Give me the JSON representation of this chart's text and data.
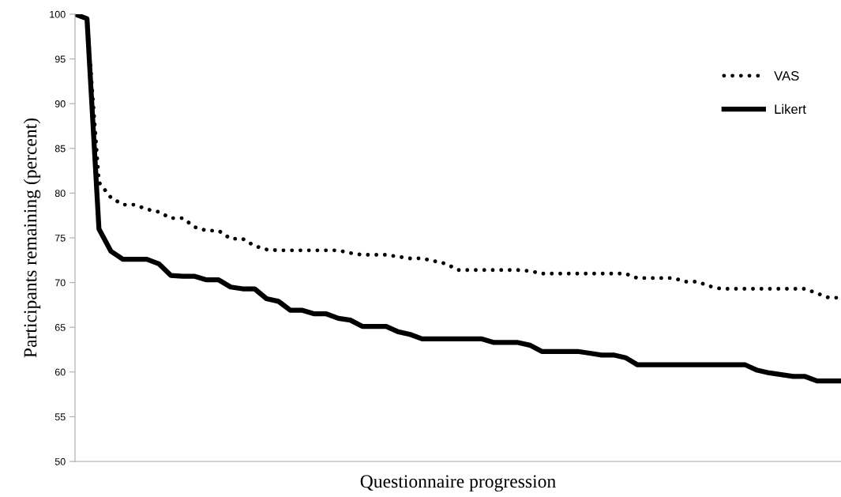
{
  "chart_data": {
    "type": "line",
    "xlabel": "Questionnaire progression",
    "ylabel": "Participants remaining (percent)",
    "categories": [
      null,
      null,
      null,
      null,
      null,
      null,
      null,
      null,
      null,
      null,
      null,
      null,
      null,
      null,
      null,
      null,
      null,
      null,
      null,
      null,
      null,
      null,
      null,
      null,
      null,
      null,
      null,
      null,
      null,
      null,
      null,
      null,
      null,
      null,
      null,
      null,
      null,
      null,
      null,
      null,
      null,
      null,
      null,
      null,
      null,
      null,
      null,
      null,
      null,
      null,
      null,
      null,
      null,
      null,
      null,
      null,
      null,
      null,
      null,
      null,
      null,
      null,
      null,
      null,
      null
    ],
    "series": [
      {
        "name": "VAS",
        "color": "#000000",
        "line_style": "dotted",
        "values": [
          100,
          99.5,
          81.2,
          79.5,
          78.7,
          78.7,
          78.2,
          77.9,
          77.2,
          77.2,
          76.2,
          75.8,
          75.8,
          74.9,
          74.9,
          74.1,
          73.7,
          73.6,
          73.6,
          73.6,
          73.6,
          73.6,
          73.6,
          73.3,
          73.1,
          73.1,
          73.1,
          72.9,
          72.7,
          72.7,
          72.4,
          72.1,
          71.4,
          71.4,
          71.4,
          71.4,
          71.4,
          71.4,
          71.3,
          71.0,
          71.0,
          71.0,
          71.0,
          71.0,
          71.0,
          71.0,
          71.0,
          70.5,
          70.5,
          70.5,
          70.5,
          70.1,
          70.1,
          69.6,
          69.3,
          69.3,
          69.3,
          69.3,
          69.3,
          69.3,
          69.3,
          69.3,
          68.8,
          68.3,
          68.3
        ]
      },
      {
        "name": "Likert",
        "color": "#000000",
        "line_style": "solid",
        "values": [
          100,
          99.5,
          76,
          73.5,
          72.6,
          72.6,
          72.6,
          72.1,
          70.8,
          70.7,
          70.7,
          70.3,
          70.3,
          69.5,
          69.3,
          69.3,
          68.2,
          67.9,
          66.9,
          66.9,
          66.5,
          66.5,
          66.0,
          65.8,
          65.1,
          65.1,
          65.1,
          64.5,
          64.2,
          63.7,
          63.7,
          63.7,
          63.7,
          63.7,
          63.7,
          63.3,
          63.3,
          63.3,
          63.0,
          62.3,
          62.3,
          62.3,
          62.3,
          62.1,
          61.9,
          61.9,
          61.6,
          60.8,
          60.8,
          60.8,
          60.8,
          60.8,
          60.8,
          60.8,
          60.8,
          60.8,
          60.8,
          60.2,
          59.9,
          59.7,
          59.5,
          59.5,
          59.0,
          59.0,
          59.0
        ]
      }
    ],
    "ylim": [
      50,
      100
    ],
    "yticks": [
      50,
      55,
      60,
      65,
      70,
      75,
      80,
      85,
      90,
      95,
      100
    ],
    "tick_labels": "y",
    "legend": "top right",
    "grid": false
  }
}
